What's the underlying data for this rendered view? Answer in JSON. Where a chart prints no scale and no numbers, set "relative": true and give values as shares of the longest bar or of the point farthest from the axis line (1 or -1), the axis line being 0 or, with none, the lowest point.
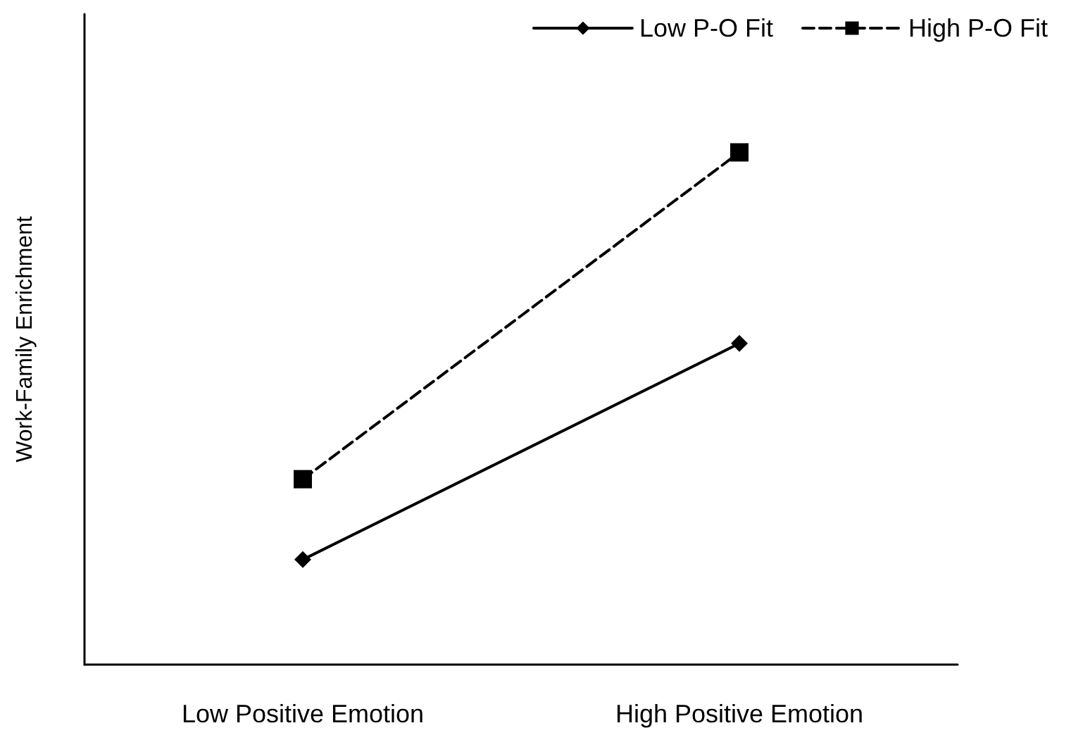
{
  "chart_data": {
    "type": "line",
    "ylabel": "Work-Family Enrichment",
    "categories": [
      "Low Positive Emotion",
      "High Positive Emotion"
    ],
    "relative": true,
    "legend": "top right",
    "grid": false,
    "series": [
      {
        "name": "Low P-O Fit",
        "color": "#000000",
        "values": [
          0.205,
          0.627
        ],
        "marker": "diamond",
        "line_style": "solid"
      },
      {
        "name": "High P-O Fit",
        "color": "#000000",
        "values": [
          0.362,
          1
        ],
        "marker": "square",
        "line_style": "dashed"
      }
    ]
  }
}
